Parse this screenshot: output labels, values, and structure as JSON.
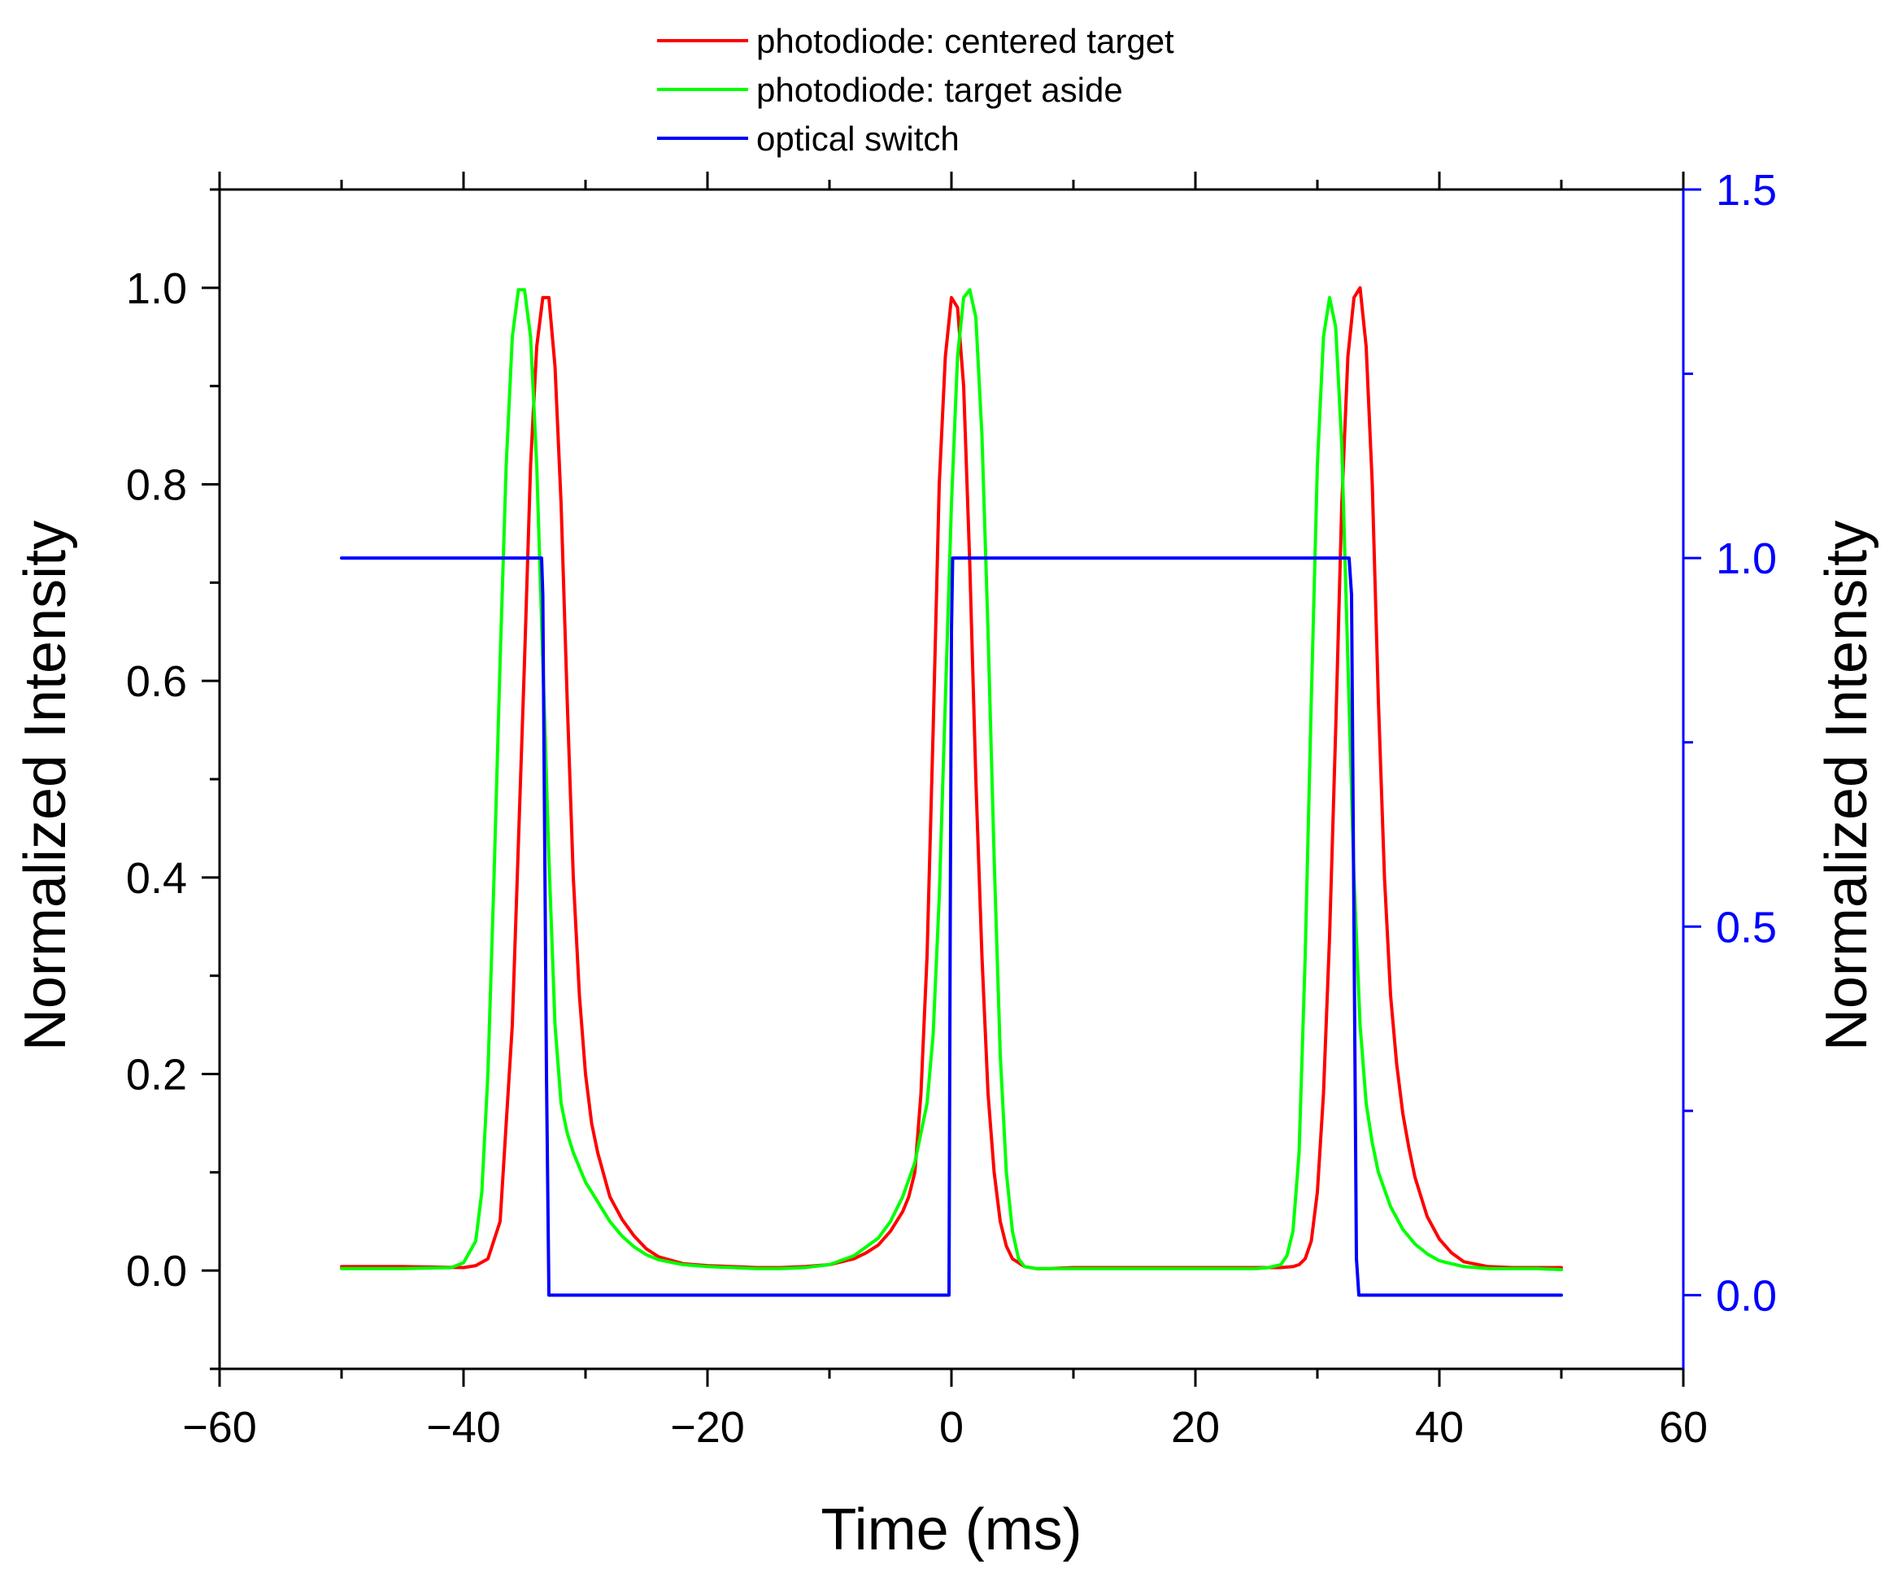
{
  "chart_data": {
    "type": "line",
    "title": "",
    "xlabel": "Time (ms)",
    "ylabel": "Normalized Intensity",
    "ylabel_right": "Normalized Intensity",
    "xlim": [
      -60,
      60
    ],
    "ylim": [
      -0.1,
      1.1
    ],
    "ylim_right": [
      -0.1,
      1.5
    ],
    "x_ticks": [
      -60,
      -40,
      -20,
      0,
      20,
      40,
      60
    ],
    "x_tick_labels": [
      "−60",
      "−40",
      "−20",
      "0",
      "20",
      "40",
      "60"
    ],
    "y_ticks": [
      0.0,
      0.2,
      0.4,
      0.6,
      0.8,
      1.0
    ],
    "y_tick_labels": [
      "0.0",
      "0.2",
      "0.4",
      "0.6",
      "0.8",
      "1.0"
    ],
    "y_ticks_right": [
      0.0,
      0.5,
      1.0,
      1.5
    ],
    "y_tick_labels_right": [
      "0.0",
      "0.5",
      "1.0",
      "1.5"
    ],
    "grid": false,
    "legend_position": "top-center, outside plot",
    "right_axis_color": "#0000ff",
    "series": [
      {
        "name": "photodiode: centered target",
        "color": "#ff0000",
        "axis": "left",
        "x": [
          -50,
          -45,
          -40,
          -39,
          -38,
          -37,
          -36,
          -35,
          -34.5,
          -34,
          -33.5,
          -33,
          -32.5,
          -32,
          -31.5,
          -31,
          -30.5,
          -30,
          -29.5,
          -29,
          -28,
          -27,
          -26,
          -25,
          -24,
          -22,
          -20,
          -18,
          -16,
          -14,
          -12,
          -10,
          -8,
          -7,
          -6,
          -5,
          -4,
          -3.5,
          -3,
          -2.5,
          -2,
          -1.5,
          -1,
          -0.5,
          0,
          0.5,
          1,
          1.5,
          2,
          2.5,
          3,
          3.5,
          4,
          4.5,
          5,
          6,
          7,
          8,
          10,
          15,
          20,
          25,
          26,
          27,
          28,
          28.5,
          29,
          29.5,
          30,
          30.5,
          31,
          31.5,
          32,
          32.5,
          33,
          33.5,
          34,
          34.5,
          35,
          35.5,
          36,
          36.5,
          37,
          37.5,
          38,
          39,
          40,
          41,
          42,
          44,
          46,
          48,
          50
        ],
        "y": [
          0.004,
          0.004,
          0.003,
          0.005,
          0.012,
          0.05,
          0.25,
          0.62,
          0.82,
          0.94,
          0.99,
          0.99,
          0.92,
          0.78,
          0.58,
          0.4,
          0.28,
          0.2,
          0.15,
          0.12,
          0.075,
          0.052,
          0.035,
          0.022,
          0.014,
          0.007,
          0.005,
          0.004,
          0.003,
          0.003,
          0.004,
          0.006,
          0.012,
          0.018,
          0.026,
          0.04,
          0.06,
          0.075,
          0.1,
          0.18,
          0.32,
          0.55,
          0.8,
          0.93,
          0.99,
          0.98,
          0.9,
          0.72,
          0.5,
          0.32,
          0.18,
          0.1,
          0.05,
          0.025,
          0.012,
          0.004,
          0.002,
          0.002,
          0.003,
          0.003,
          0.003,
          0.003,
          0.003,
          0.003,
          0.004,
          0.006,
          0.012,
          0.03,
          0.08,
          0.18,
          0.34,
          0.55,
          0.78,
          0.93,
          0.99,
          1.0,
          0.94,
          0.8,
          0.58,
          0.4,
          0.28,
          0.21,
          0.16,
          0.125,
          0.095,
          0.055,
          0.032,
          0.018,
          0.009,
          0.004,
          0.003,
          0.003,
          0.003
        ]
      },
      {
        "name": "photodiode: target aside",
        "color": "#00ff00",
        "axis": "left",
        "x": [
          -50,
          -45,
          -41,
          -40,
          -39,
          -38.5,
          -38,
          -37.5,
          -37,
          -36.5,
          -36,
          -35.5,
          -35,
          -34.5,
          -34,
          -33.5,
          -33,
          -32.5,
          -32,
          -31.5,
          -31,
          -30.5,
          -30,
          -29,
          -28,
          -27,
          -26,
          -25,
          -24,
          -22,
          -20,
          -18,
          -16,
          -14,
          -12,
          -10,
          -8,
          -6,
          -5,
          -4,
          -3,
          -2.5,
          -2,
          -1.5,
          -1,
          -0.5,
          0,
          0.5,
          1,
          1.5,
          2,
          2.5,
          3,
          3.5,
          4,
          4.5,
          5,
          5.5,
          6,
          7,
          8,
          10,
          15,
          20,
          25,
          26,
          27,
          27.5,
          28,
          28.5,
          29,
          29.5,
          30,
          30.5,
          31,
          31.5,
          32,
          32.5,
          33,
          33.5,
          34,
          34.5,
          35,
          36,
          37,
          38,
          39,
          40,
          42,
          44,
          46,
          48,
          50
        ],
        "y": [
          0.002,
          0.002,
          0.003,
          0.008,
          0.03,
          0.08,
          0.2,
          0.4,
          0.62,
          0.82,
          0.95,
          0.998,
          0.998,
          0.95,
          0.82,
          0.62,
          0.42,
          0.25,
          0.17,
          0.14,
          0.12,
          0.105,
          0.09,
          0.07,
          0.05,
          0.035,
          0.024,
          0.016,
          0.011,
          0.006,
          0.004,
          0.003,
          0.002,
          0.002,
          0.003,
          0.006,
          0.015,
          0.033,
          0.05,
          0.075,
          0.11,
          0.14,
          0.17,
          0.24,
          0.38,
          0.58,
          0.78,
          0.93,
          0.99,
          0.998,
          0.97,
          0.85,
          0.65,
          0.42,
          0.22,
          0.1,
          0.04,
          0.012,
          0.004,
          0.002,
          0.002,
          0.002,
          0.002,
          0.002,
          0.002,
          0.003,
          0.006,
          0.015,
          0.04,
          0.12,
          0.32,
          0.58,
          0.82,
          0.95,
          0.99,
          0.96,
          0.84,
          0.62,
          0.4,
          0.25,
          0.17,
          0.13,
          0.1,
          0.065,
          0.042,
          0.027,
          0.017,
          0.01,
          0.004,
          0.002,
          0.002,
          0.002,
          0.001
        ]
      },
      {
        "name": "optical switch",
        "color": "#0000ff",
        "axis": "right",
        "x": [
          -50,
          -33.6,
          -33.5,
          -33.2,
          -33.0,
          -10,
          -0.2,
          -0.1,
          0.0,
          0.1,
          0.2,
          32.5,
          32.6,
          32.8,
          33.0,
          33.2,
          33.4,
          50
        ],
        "y": [
          1.0,
          1.0,
          0.95,
          0.3,
          0.0,
          0.0,
          0.0,
          0.5,
          0.9,
          1.0,
          1.0,
          1.0,
          1.0,
          0.95,
          0.5,
          0.05,
          0.0,
          0.0
        ]
      }
    ]
  }
}
